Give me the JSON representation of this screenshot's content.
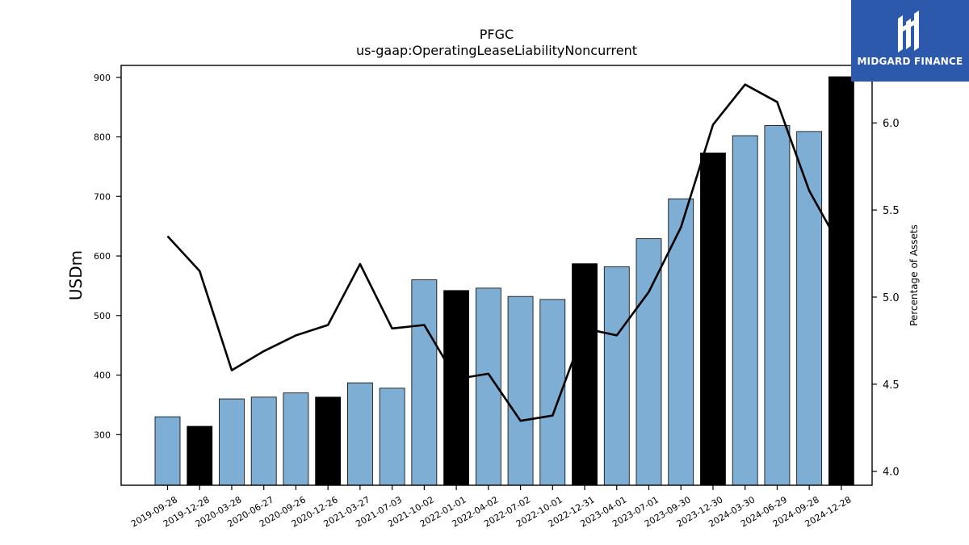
{
  "chart_data": {
    "type": "bar",
    "title": "PFGC",
    "subtitle": "us-gaap:OperatingLeaseLiabilityNoncurrent",
    "ylabel": "USDm",
    "y2label": "Percentage of Assets",
    "categories": [
      "2019-09-28",
      "2019-12-28",
      "2020-03-28",
      "2020-06-27",
      "2020-09-26",
      "2020-12-26",
      "2021-03-27",
      "2021-07-03",
      "2021-10-02",
      "2022-01-01",
      "2022-04-02",
      "2022-07-02",
      "2022-10-01",
      "2022-12-31",
      "2023-04-01",
      "2023-07-01",
      "2023-09-30",
      "2023-12-30",
      "2024-03-30",
      "2024-06-29",
      "2024-09-28",
      "2024-12-28"
    ],
    "series": [
      {
        "values": [
          330,
          314,
          360,
          363,
          370,
          363,
          387,
          378,
          560,
          542,
          546,
          532,
          527,
          587,
          582,
          629,
          696,
          773,
          802,
          819,
          809,
          901
        ],
        "highlight": [
          false,
          true,
          false,
          false,
          false,
          true,
          false,
          false,
          false,
          true,
          false,
          false,
          false,
          true,
          false,
          false,
          false,
          true,
          false,
          false,
          false,
          true
        ],
        "color": "#7eaed3",
        "highlight_color": "#000000"
      },
      {
        "type": "line",
        "axis": "right",
        "color": "#000000",
        "values": [
          5.35,
          5.15,
          4.58,
          4.69,
          4.78,
          4.84,
          5.19,
          4.82,
          4.84,
          4.53,
          4.56,
          4.29,
          4.32,
          4.82,
          4.78,
          5.03,
          5.4,
          5.99,
          6.22,
          6.12,
          5.61,
          5.28
        ]
      }
    ],
    "ylim": [
      215,
      920
    ],
    "y2lim": [
      3.92,
      6.33
    ],
    "yticks": [
      300,
      400,
      500,
      600,
      700,
      800,
      900
    ],
    "y2ticks": [
      "4.0",
      "4.5",
      "5.0",
      "5.5",
      "6.0"
    ]
  },
  "logo": {
    "text": "MIDGARD FINANCE",
    "color": "#2d59ad"
  }
}
